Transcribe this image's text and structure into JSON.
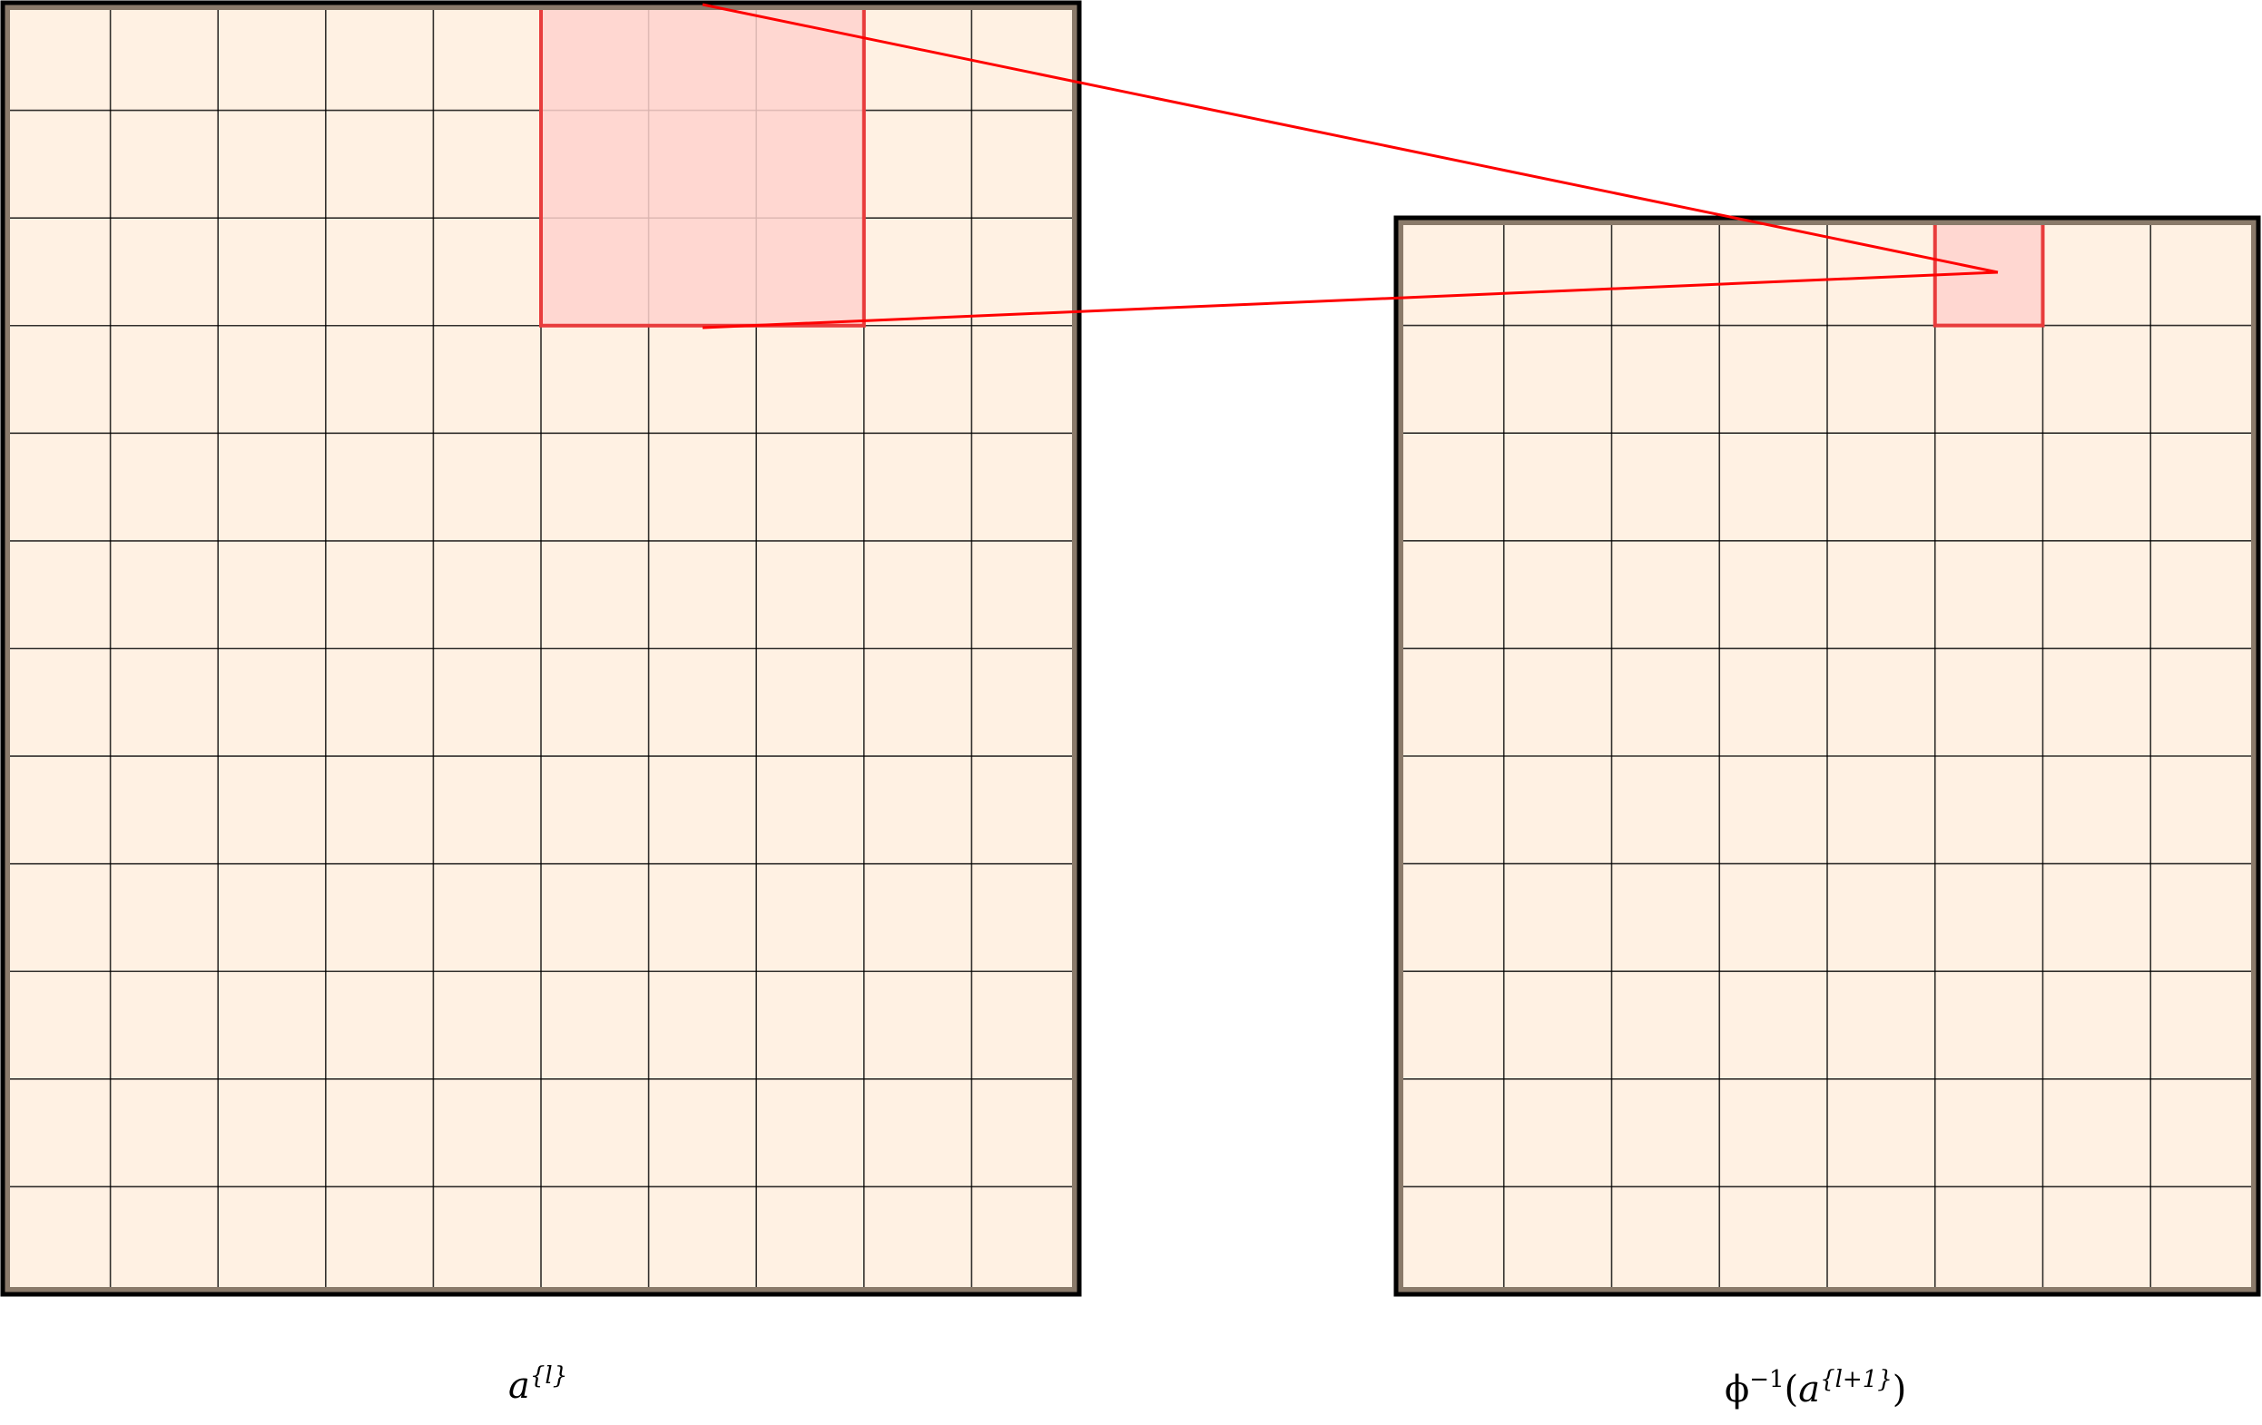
{
  "left_grid": {
    "rows": 12,
    "cols": 10,
    "highlight": {
      "row_start": 0,
      "row_end": 3,
      "col_start": 5,
      "col_end": 8
    }
  },
  "right_grid": {
    "rows": 10,
    "cols": 8,
    "highlight": {
      "row_start": 0,
      "row_end": 1,
      "col_start": 5,
      "col_end": 6
    }
  },
  "colors": {
    "cell_fill": "#FFF1E3",
    "highlight_fill": "#FFD2CE",
    "highlight_stroke": "#E83C3C",
    "connector": "#FF0000",
    "border": "#000000",
    "inner_border": "#8A7A6A"
  },
  "labels": {
    "left": {
      "base": "a",
      "sup": "{l}"
    },
    "right": {
      "prefix": "ϕ",
      "prefix_sup": "−1",
      "open": "(",
      "base": "a",
      "sup": "{l+1}",
      "close": ")"
    }
  }
}
